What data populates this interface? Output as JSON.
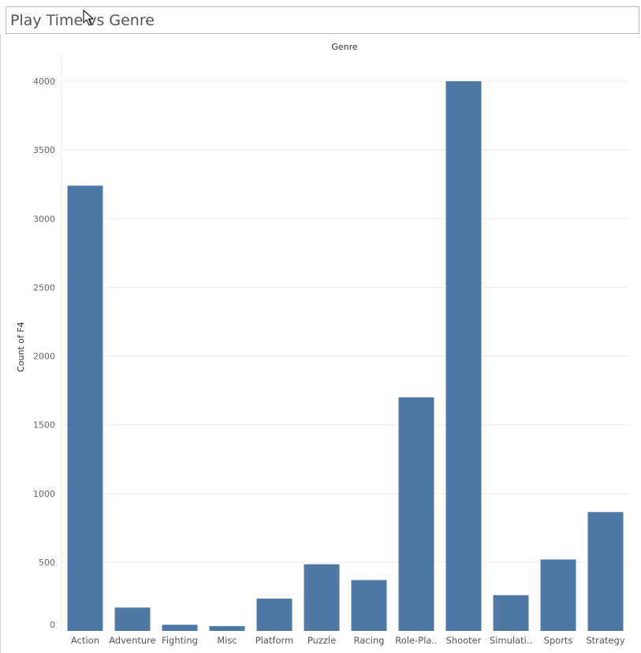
{
  "window": {
    "title": "Play Time vs Genre"
  },
  "chart_data": {
    "type": "bar",
    "column_header": "Genre",
    "ylabel": "Count of F4",
    "ylim": [
      0,
      4200
    ],
    "yticks": [
      0,
      500,
      1000,
      1500,
      2000,
      2500,
      3000,
      3500,
      4000
    ],
    "grid": true,
    "bar_color": "#4e79a7",
    "categories": [
      "Action",
      "Adventure",
      "Fighting",
      "Misc",
      "Platform",
      "Puzzle",
      "Racing",
      "Role-Pla..",
      "Shooter",
      "Simulati..",
      "Sports",
      "Strategy"
    ],
    "values": [
      3240,
      170,
      45,
      35,
      235,
      485,
      370,
      1700,
      4000,
      260,
      520,
      865
    ]
  }
}
